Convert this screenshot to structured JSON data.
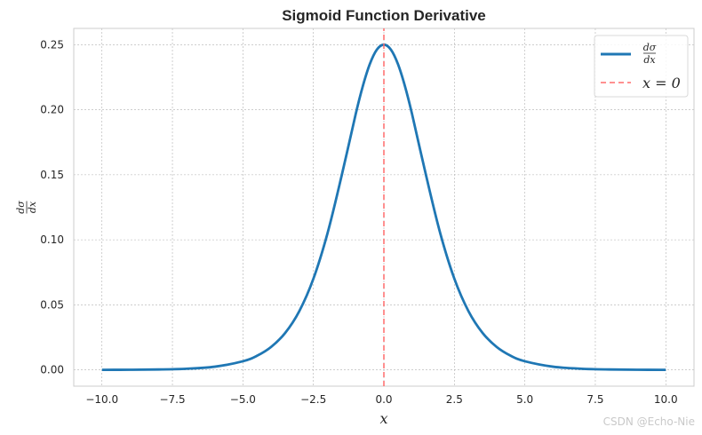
{
  "chart_data": {
    "type": "line",
    "title": "Sigmoid Function Derivative",
    "xlabel": "x",
    "ylabel": {
      "numerator": "dσ",
      "denominator": "dx"
    },
    "xlim": [
      -11,
      11
    ],
    "ylim": [
      -0.0125,
      0.2625
    ],
    "x_ticks": [
      -10.0,
      -7.5,
      -5.0,
      -2.5,
      0.0,
      2.5,
      5.0,
      7.5,
      10.0
    ],
    "x_tick_labels": [
      "−10.0",
      "−7.5",
      "−5.0",
      "−2.5",
      "0.0",
      "2.5",
      "5.0",
      "7.5",
      "10.0"
    ],
    "y_ticks": [
      0.0,
      0.05,
      0.1,
      0.15,
      0.2,
      0.25
    ],
    "y_tick_labels": [
      "0.00",
      "0.05",
      "0.10",
      "0.15",
      "0.20",
      "0.25"
    ],
    "grid": true,
    "legend_position": "top-right",
    "series": [
      {
        "name": {
          "numerator": "dσ",
          "denominator": "dx"
        },
        "style": "solid",
        "color": "#1f77b4",
        "x": [
          -10,
          -9,
          -8,
          -7,
          -6,
          -5,
          -4.5,
          -4,
          -3.5,
          -3,
          -2.5,
          -2,
          -1.5,
          -1,
          -0.75,
          -0.5,
          -0.25,
          0,
          0.25,
          0.5,
          0.75,
          1,
          1.5,
          2,
          2.5,
          3,
          3.5,
          4,
          4.5,
          5,
          6,
          7,
          8,
          9,
          10
        ],
        "y": [
          5e-05,
          0.00012,
          0.00034,
          0.00091,
          0.00247,
          0.00665,
          0.01086,
          0.01766,
          0.02845,
          0.04518,
          0.0701,
          0.10499,
          0.14914,
          0.19661,
          0.21789,
          0.235,
          0.24613,
          0.25,
          0.24613,
          0.235,
          0.21789,
          0.19661,
          0.14914,
          0.10499,
          0.0701,
          0.04518,
          0.02845,
          0.01766,
          0.01086,
          0.00665,
          0.00247,
          0.00091,
          0.00034,
          0.00012,
          5e-05
        ]
      },
      {
        "name": "x = 0",
        "style": "dashed",
        "color": "#ff6b6b",
        "x": [
          0,
          0
        ],
        "y": [
          -0.0125,
          0.2625
        ]
      }
    ]
  },
  "watermark": "CSDN @Echo-Nie"
}
